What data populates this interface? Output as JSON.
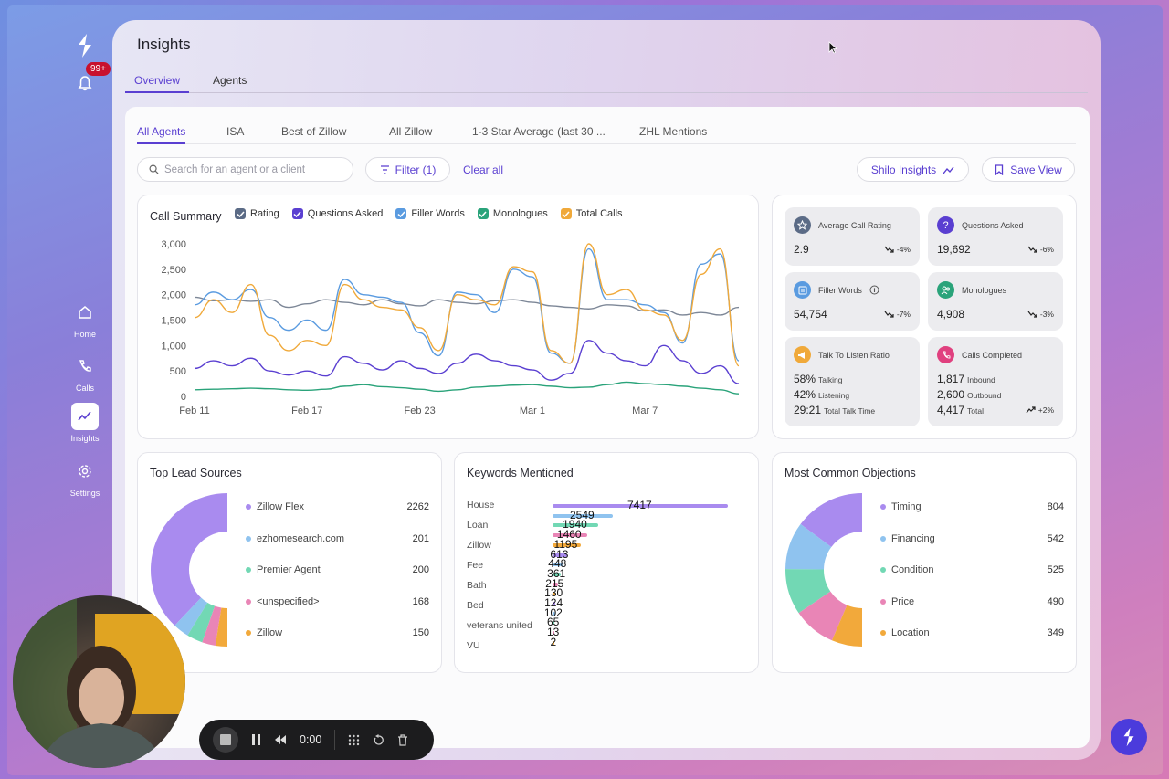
{
  "app": {
    "title": "Insights",
    "notification_count": "99+"
  },
  "nav": [
    {
      "label": "Home",
      "icon": "home-icon"
    },
    {
      "label": "Calls",
      "icon": "phone-icon"
    },
    {
      "label": "Insights",
      "icon": "insights-icon",
      "active": true
    },
    {
      "label": "Settings",
      "icon": "gear-icon"
    }
  ],
  "top_tabs": [
    "Overview",
    "Agents"
  ],
  "sub_tabs": [
    "All Agents",
    "ISA",
    "Best of Zillow",
    "All Zillow",
    "1-3 Star Average (last 30 ...",
    "ZHL Mentions"
  ],
  "toolbar": {
    "search_placeholder": "Search for an agent or a client",
    "filter_label": "Filter (1)",
    "clear_label": "Clear all",
    "shilo_label": "Shilo Insights",
    "save_label": "Save View"
  },
  "call_summary": {
    "title": "Call Summary",
    "legend": [
      {
        "name": "Rating",
        "color": "#5b6b86"
      },
      {
        "name": "Questions Asked",
        "color": "#5a3fd1"
      },
      {
        "name": "Filler Words",
        "color": "#5a9be0"
      },
      {
        "name": "Monologues",
        "color": "#2aa37a"
      },
      {
        "name": "Total Calls",
        "color": "#f0a93a"
      }
    ]
  },
  "chart_data": {
    "type": "line",
    "title": "Call Summary",
    "ylim": [
      0,
      3000
    ],
    "yticks": [
      "3,000",
      "2,500",
      "2,000",
      "1,500",
      "1,000",
      "500",
      "0"
    ],
    "xticks": [
      "Feb 11",
      "Feb 17",
      "Feb 23",
      "Mar 1",
      "Mar 7"
    ],
    "x": [
      "Feb 11",
      "Feb 12",
      "Feb 13",
      "Feb 14",
      "Feb 15",
      "Feb 16",
      "Feb 17",
      "Feb 18",
      "Feb 19",
      "Feb 20",
      "Feb 21",
      "Feb 22",
      "Feb 23",
      "Feb 24",
      "Feb 25",
      "Feb 26",
      "Feb 27",
      "Feb 28",
      "Mar 1",
      "Mar 2",
      "Mar 3",
      "Mar 4",
      "Mar 5",
      "Mar 6",
      "Mar 7",
      "Mar 8",
      "Mar 9",
      "Mar 10",
      "Mar 11",
      "Mar 12"
    ],
    "series": [
      {
        "name": "Rating",
        "color": "#7d8797",
        "values": [
          1950,
          1880,
          1900,
          1870,
          1900,
          1750,
          1820,
          1900,
          1850,
          1800,
          1900,
          1820,
          1780,
          1900,
          1850,
          1820,
          1880,
          1900,
          1850,
          1780,
          1750,
          1720,
          1800,
          1780,
          1680,
          1700,
          1600,
          1650,
          1600,
          1750
        ]
      },
      {
        "name": "Questions Asked",
        "color": "#5a3fd1",
        "values": [
          550,
          700,
          600,
          750,
          500,
          420,
          500,
          400,
          780,
          650,
          520,
          700,
          550,
          450,
          650,
          830,
          700,
          600,
          520,
          320,
          450,
          1100,
          850,
          700,
          600,
          1000,
          700,
          450,
          600,
          250
        ]
      },
      {
        "name": "Filler Words",
        "color": "#5a9be0",
        "values": [
          1800,
          2050,
          1900,
          2100,
          1550,
          1300,
          1500,
          1300,
          2300,
          2000,
          1950,
          1850,
          1250,
          800,
          2050,
          2000,
          1650,
          2500,
          2350,
          850,
          650,
          2900,
          1900,
          1900,
          1800,
          1650,
          1050,
          2600,
          2800,
          700
        ]
      },
      {
        "name": "Monologues",
        "color": "#2aa37a",
        "values": [
          130,
          140,
          150,
          160,
          150,
          130,
          120,
          140,
          200,
          230,
          190,
          170,
          140,
          100,
          130,
          180,
          200,
          220,
          230,
          200,
          170,
          180,
          230,
          280,
          250,
          230,
          200,
          160,
          130,
          50
        ]
      },
      {
        "name": "Total Calls",
        "color": "#f0a93a",
        "values": [
          1550,
          1900,
          1650,
          2200,
          1200,
          900,
          1100,
          1000,
          2200,
          1900,
          1750,
          1700,
          1350,
          900,
          2000,
          1900,
          1800,
          2550,
          2450,
          900,
          650,
          3000,
          2000,
          2100,
          1700,
          1600,
          1100,
          2400,
          2900,
          600
        ]
      }
    ]
  },
  "metrics": [
    {
      "title": "Average Call Rating",
      "value": "2.9",
      "delta": "-4%",
      "icon": "star-icon",
      "color": "#5b6b86"
    },
    {
      "title": "Questions Asked",
      "value": "19,692",
      "delta": "-6%",
      "icon": "question-icon",
      "color": "#5a3fd1"
    },
    {
      "title": "Filler Words",
      "value": "54,754",
      "delta": "-7%",
      "icon": "document-icon",
      "color": "#5a9be0"
    },
    {
      "title": "Monologues",
      "value": "4,908",
      "delta": "-3%",
      "icon": "people-icon",
      "color": "#2aa37a"
    }
  ],
  "talk_ratio": {
    "title": "Talk To Listen Ratio",
    "talking_value": "58%",
    "talking_label": "Talking",
    "listening_value": "42%",
    "listening_label": "Listening",
    "total_value": "29:21",
    "total_label": "Total Talk Time"
  },
  "calls_completed": {
    "title": "Calls Completed",
    "inbound_value": "1,817",
    "inbound_label": "Inbound",
    "outbound_value": "2,600",
    "outbound_label": "Outbound",
    "total_value": "4,417",
    "total_label": "Total",
    "delta": "+2%"
  },
  "lead_sources": {
    "title": "Top Lead Sources",
    "items": [
      {
        "name": "Zillow Flex",
        "value": 2262,
        "color": "#a98bef"
      },
      {
        "name": "ezhomesearch.com",
        "value": 201,
        "color": "#8fc3ef"
      },
      {
        "name": "Premier Agent",
        "value": 200,
        "color": "#72d8b4"
      },
      {
        "name": "<unspecified>",
        "value": 168,
        "color": "#e985b6"
      },
      {
        "name": "Zillow",
        "value": 150,
        "color": "#f2a93b"
      }
    ]
  },
  "keywords": {
    "title": "Keywords Mentioned",
    "labels": [
      "House",
      "Loan",
      "Zillow",
      "Fee",
      "Bath",
      "Bed",
      "veterans united",
      "VU"
    ],
    "bars": [
      {
        "value": "7417",
        "num": 7417,
        "color": "#a98bef"
      },
      {
        "value": "2549",
        "num": 2549,
        "color": "#8fc3ef"
      },
      {
        "value": "1940",
        "num": 1940,
        "color": "#72d8b4"
      },
      {
        "value": "1460",
        "num": 1460,
        "color": "#e985b6"
      },
      {
        "value": "1195",
        "num": 1195,
        "color": "#f2a93b"
      },
      {
        "value": "613",
        "num": 613,
        "color": "#a98bef"
      },
      {
        "value": "448",
        "num": 448,
        "color": "#8fc3ef"
      },
      {
        "value": "361",
        "num": 361,
        "color": "#72d8b4"
      },
      {
        "value": "215",
        "num": 215,
        "color": "#e985b6"
      },
      {
        "value": "130",
        "num": 130,
        "color": "#f2a93b"
      },
      {
        "value": "124",
        "num": 124,
        "color": "#a98bef"
      },
      {
        "value": "102",
        "num": 102,
        "color": "#8fc3ef"
      },
      {
        "value": "65",
        "num": 65,
        "color": "#72d8b4"
      },
      {
        "value": "13",
        "num": 13,
        "color": "#e985b6"
      },
      {
        "value": "2",
        "num": 2,
        "color": "#f2a93b"
      }
    ]
  },
  "objections": {
    "title": "Most Common Objections",
    "items": [
      {
        "name": "Timing",
        "value": 804,
        "color": "#a98bef"
      },
      {
        "name": "Financing",
        "value": 542,
        "color": "#8fc3ef"
      },
      {
        "name": "Condition",
        "value": 525,
        "color": "#72d8b4"
      },
      {
        "name": "Price",
        "value": 490,
        "color": "#e985b6"
      },
      {
        "name": "Location",
        "value": 349,
        "color": "#f2a93b"
      }
    ]
  },
  "recorder": {
    "time": "0:00"
  }
}
